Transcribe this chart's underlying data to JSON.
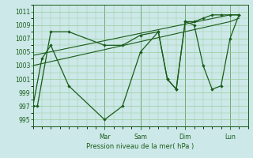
{
  "bg_color": "#cce8e8",
  "grid_color": "#99cc99",
  "line_color": "#1a5c1a",
  "xlabel": "Pression niveau de la mer( hPa )",
  "ylim": [
    994,
    1012
  ],
  "yticks": [
    995,
    997,
    999,
    1001,
    1003,
    1005,
    1007,
    1009,
    1011
  ],
  "xlim": [
    0,
    24
  ],
  "x_tick_positions": [
    8,
    12,
    17,
    22
  ],
  "x_tick_labels": [
    "Mar",
    "Sam",
    "Dim",
    "Lun"
  ],
  "series1": {
    "x": [
      0,
      0.5,
      2,
      4,
      8,
      10,
      12,
      14,
      15,
      16,
      17,
      18,
      19,
      20,
      21,
      22,
      23
    ],
    "y": [
      997,
      997,
      1008,
      1008,
      1006,
      1006,
      1007.5,
      1008,
      1001,
      999.5,
      1009.5,
      1009.5,
      1010,
      1010.5,
      1010.5,
      1010.5,
      1010.5
    ]
  },
  "series2": {
    "x": [
      0,
      1,
      2,
      4,
      8,
      10,
      12,
      14,
      15,
      16,
      17,
      18,
      19,
      20,
      21,
      22,
      23
    ],
    "y": [
      997,
      1004,
      1006,
      1000,
      995,
      997,
      1005,
      1008,
      1001,
      999.5,
      1009.5,
      1009,
      1003,
      999.5,
      1000,
      1007,
      1010.5
    ]
  },
  "trend1": {
    "x": [
      0,
      22,
      23
    ],
    "y": [
      1003,
      1009.5,
      1010
    ]
  },
  "trend2": {
    "x": [
      0,
      22,
      23
    ],
    "y": [
      1004.5,
      1010.5,
      1010.5
    ]
  }
}
